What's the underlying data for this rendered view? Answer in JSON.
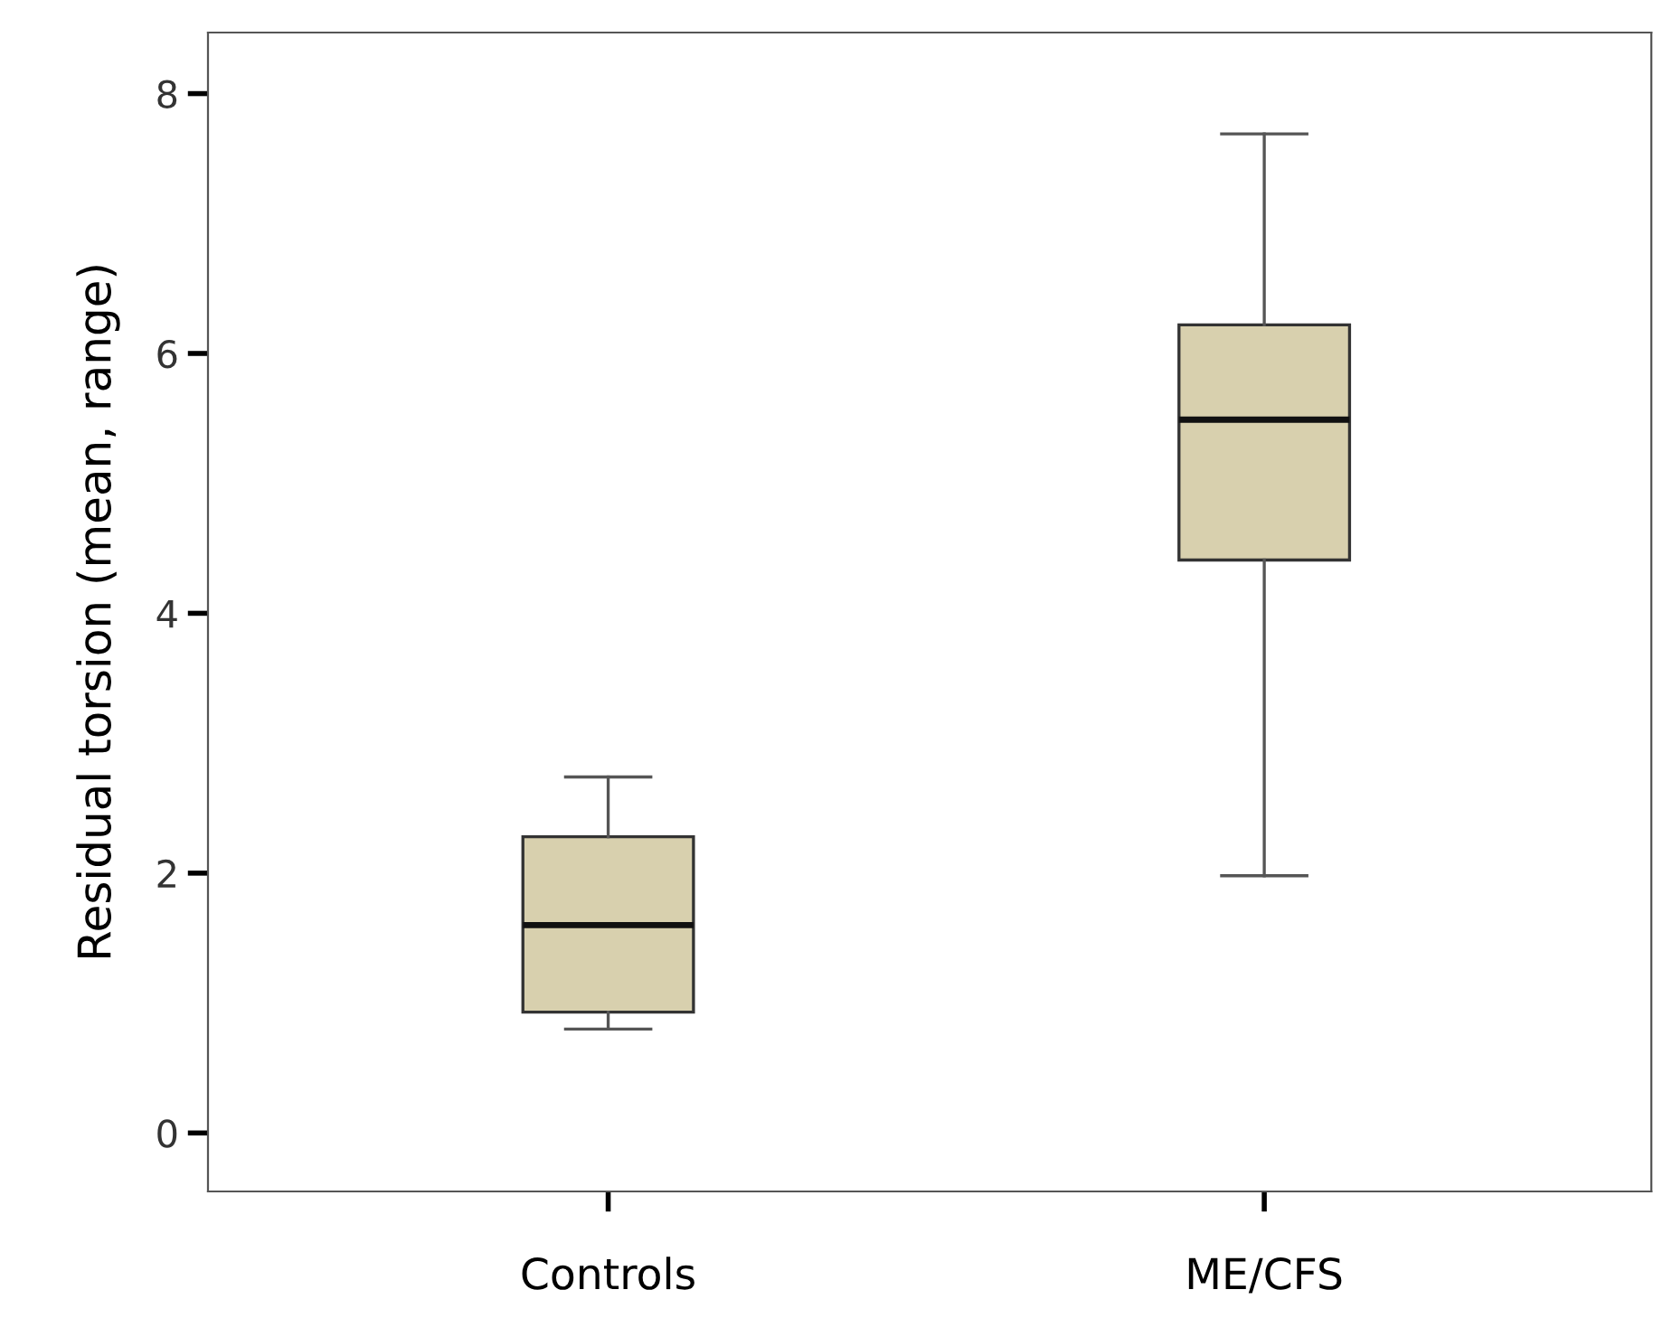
{
  "chart_data": {
    "type": "box",
    "ylabel": "Residual torsion (mean, range)",
    "categories": [
      "Controls",
      "ME/CFS"
    ],
    "boxes": [
      {
        "low": 0.8,
        "q1": 0.93,
        "median": 1.6,
        "q3": 2.28,
        "high": 2.74
      },
      {
        "low": 1.98,
        "q1": 4.41,
        "median": 5.49,
        "q3": 6.22,
        "high": 7.69
      }
    ],
    "color": "#d8d0ae",
    "ylim": [
      -0.45,
      8.47
    ],
    "yticks": [
      0,
      2,
      4,
      6,
      8
    ],
    "grid": false
  }
}
